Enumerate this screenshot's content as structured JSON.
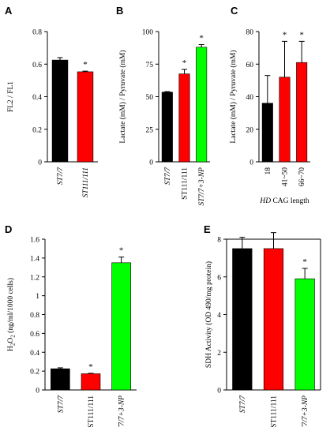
{
  "chart_data": [
    {
      "panel": "A",
      "type": "bar",
      "categories": [
        "ST7/7",
        "ST111/111"
      ],
      "category_italic": [
        true,
        true
      ],
      "values": [
        0.625,
        0.553
      ],
      "errors": [
        0.015,
        0.004
      ],
      "colors": [
        "#000000",
        "#ff0000"
      ],
      "significance": [
        "",
        "*"
      ],
      "ylabel": "FL2 / FL1",
      "ylabel_sub": "",
      "xlabel": "",
      "xlabel_italic_prefix": "",
      "ylim": [
        0,
        0.8
      ],
      "yticks": [
        0,
        0.2,
        0.4,
        0.6,
        0.8
      ],
      "ytick_labels": [
        "0",
        "0.2",
        "0.4",
        "0.6",
        "0.8"
      ],
      "axes": "left"
    },
    {
      "panel": "B",
      "type": "bar",
      "categories": [
        "ST7/7",
        "ST111/111",
        "ST7/7+3-NP"
      ],
      "category_italic": [
        true,
        false,
        true
      ],
      "values": [
        53.5,
        67.5,
        88
      ],
      "errors": [
        0.4,
        3.5,
        2.0
      ],
      "colors": [
        "#000000",
        "#ff0000",
        "#00ff00"
      ],
      "significance": [
        "",
        "*",
        "*"
      ],
      "ylabel": "Lactate (mM) / Pyruvate (mM)",
      "ylabel_sub": "",
      "xlabel": "",
      "xlabel_italic_prefix": "",
      "ylim": [
        0,
        100
      ],
      "yticks": [
        0,
        25,
        50,
        75,
        100
      ],
      "ytick_labels": [
        "0",
        "25",
        "50",
        "75",
        "100"
      ],
      "axes": "left"
    },
    {
      "panel": "C",
      "type": "bar",
      "categories": [
        "18",
        "41~50",
        "66~70"
      ],
      "category_italic": [
        false,
        false,
        false
      ],
      "values": [
        36,
        52,
        61
      ],
      "errors": [
        17,
        22,
        13
      ],
      "colors": [
        "#000000",
        "#ff0000",
        "#ff0000"
      ],
      "significance": [
        "",
        "*",
        "*"
      ],
      "ylabel": "Lactate (mM) / Pyruvate (mM)",
      "ylabel_sub": "",
      "xlabel": "CAG length",
      "xlabel_italic_prefix": "HD",
      "ylim": [
        0,
        80
      ],
      "yticks": [
        0,
        20,
        40,
        60,
        80
      ],
      "ytick_labels": [
        "0",
        "20",
        "40",
        "60",
        "80"
      ],
      "axes": "left"
    },
    {
      "panel": "D",
      "type": "bar",
      "categories": [
        "ST7/7",
        "ST111/111",
        "ST7/7+3-NP"
      ],
      "category_italic": [
        true,
        false,
        true
      ],
      "values": [
        0.225,
        0.172,
        1.35
      ],
      "errors": [
        0.01,
        0.005,
        0.06
      ],
      "colors": [
        "#000000",
        "#ff0000",
        "#00ff00"
      ],
      "significance": [
        "",
        "*",
        "*"
      ],
      "ylabel": "H2O2 (ng/ml/1000 cells)",
      "ylabel_sub": "2",
      "xlabel": "",
      "xlabel_italic_prefix": "",
      "ylim": [
        0,
        1.6
      ],
      "yticks": [
        0,
        0.2,
        0.4,
        0.6,
        0.8,
        1,
        1.2,
        1.4,
        1.6
      ],
      "ytick_labels": [
        "0",
        "0.2",
        "0.4",
        "0.6",
        "0.8",
        "1",
        "1.2",
        "1.4",
        "1.6"
      ],
      "axes": "left"
    },
    {
      "panel": "E",
      "type": "bar",
      "categories": [
        "ST7/7",
        "ST111/111",
        "ST7/7+3-NP"
      ],
      "category_italic": [
        true,
        false,
        true
      ],
      "values": [
        7.5,
        7.5,
        5.9
      ],
      "errors": [
        0.6,
        0.85,
        0.55
      ],
      "colors": [
        "#000000",
        "#ff0000",
        "#00ff00"
      ],
      "significance": [
        "",
        "",
        "*"
      ],
      "ylabel": "SDH Activity (OD 490/mg protein)",
      "ylabel_sub": "",
      "xlabel": "",
      "xlabel_italic_prefix": "",
      "ylim": [
        0,
        8
      ],
      "yticks": [
        0,
        2,
        4,
        6,
        8
      ],
      "ytick_labels": [
        "0",
        "2",
        "4",
        "6",
        "8"
      ],
      "axes": "box"
    }
  ]
}
